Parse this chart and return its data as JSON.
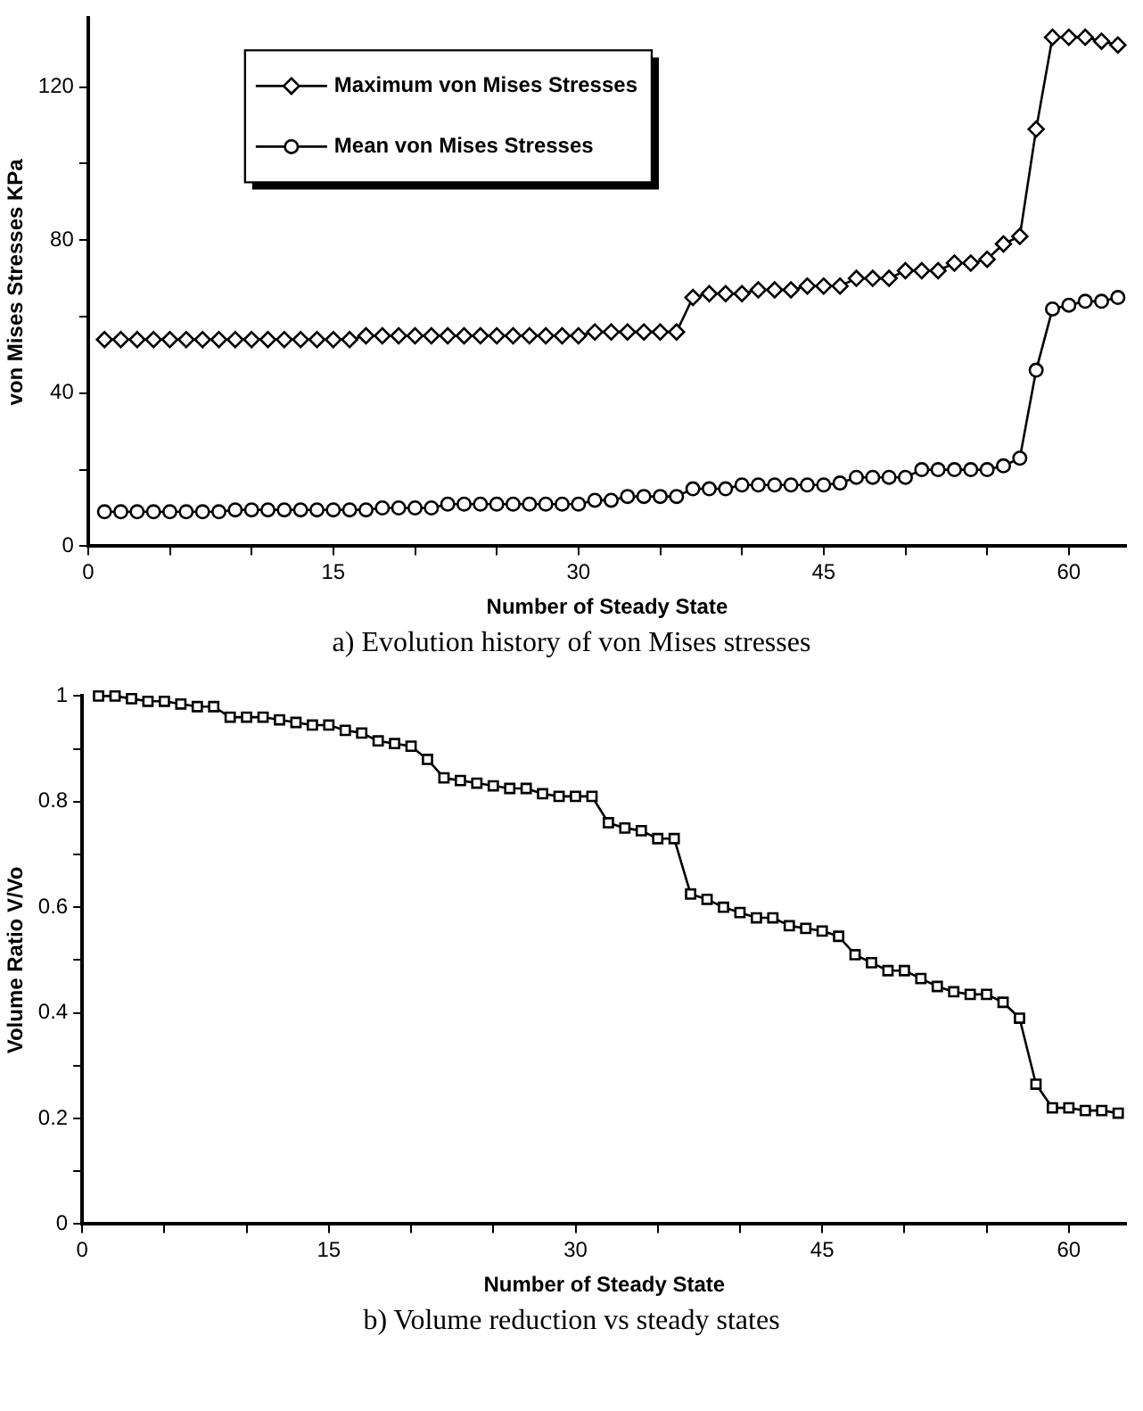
{
  "chart_data": [
    {
      "type": "line",
      "xlabel": "Number of Steady State",
      "ylabel": "von Mises Stresses KPa",
      "annotations": [
        "a) Evolution history of von Mises stresses"
      ],
      "legend": "top left",
      "grid": false,
      "line_style": "solid",
      "xlim": [
        0,
        63.5
      ],
      "ylim": [
        0,
        138
      ],
      "xticks": [
        0,
        {
          "value": 5,
          "label": null
        },
        {
          "value": 10,
          "label": null
        },
        15,
        {
          "value": 20,
          "label": null
        },
        {
          "value": 25,
          "label": null
        },
        30,
        {
          "value": 35,
          "label": null
        },
        {
          "value": 40,
          "label": null
        },
        45,
        {
          "value": 50,
          "label": null
        },
        {
          "value": 55,
          "label": null
        },
        60
      ],
      "yticks": [
        0,
        {
          "value": 20,
          "label": null
        },
        40,
        {
          "value": 60,
          "label": null
        },
        80,
        {
          "value": 100,
          "label": null
        },
        120
      ],
      "x": [
        1,
        2,
        3,
        4,
        5,
        6,
        7,
        8,
        9,
        10,
        11,
        12,
        13,
        14,
        15,
        16,
        17,
        18,
        19,
        20,
        21,
        22,
        23,
        24,
        25,
        26,
        27,
        28,
        29,
        30,
        31,
        32,
        33,
        34,
        35,
        36,
        37,
        38,
        39,
        40,
        41,
        42,
        43,
        44,
        45,
        46,
        47,
        48,
        49,
        50,
        51,
        52,
        53,
        54,
        55,
        56,
        57,
        58,
        59,
        60,
        61,
        62,
        63
      ],
      "series": [
        {
          "name": "Maximum von Mises Stresses",
          "color": "#000000",
          "marker": "diamond",
          "values": [
            54,
            54,
            54,
            54,
            54,
            54,
            54,
            54,
            54,
            54,
            54,
            54,
            54,
            54,
            54,
            54,
            55,
            55,
            55,
            55,
            55,
            55,
            55,
            55,
            55,
            55,
            55,
            55,
            55,
            55,
            56,
            56,
            56,
            56,
            56,
            56,
            65,
            66,
            66,
            66,
            67,
            67,
            67,
            68,
            68,
            68,
            70,
            70,
            70,
            72,
            72,
            72,
            74,
            74,
            75,
            79,
            81,
            109,
            133,
            133,
            133,
            132,
            131
          ]
        },
        {
          "name": "Mean von Mises Stresses",
          "color": "#000000",
          "marker": "circle",
          "values": [
            9,
            9,
            9,
            9,
            9,
            9,
            9,
            9,
            9.5,
            9.5,
            9.5,
            9.5,
            9.5,
            9.5,
            9.5,
            9.5,
            9.5,
            10,
            10,
            10,
            10,
            11,
            11,
            11,
            11,
            11,
            11,
            11,
            11,
            11,
            12,
            12,
            13,
            13,
            13,
            13,
            15,
            15,
            15,
            16,
            16,
            16,
            16,
            16,
            16,
            16.5,
            18,
            18,
            18,
            18,
            20,
            20,
            20,
            20,
            20,
            21,
            23,
            46,
            62,
            63,
            64,
            64,
            65
          ]
        }
      ]
    },
    {
      "type": "line",
      "xlabel": "Number of Steady State",
      "ylabel": "Volume Ratio V/Vo",
      "annotations": [
        "b) Volume reduction vs steady states"
      ],
      "grid": false,
      "line_style": "solid",
      "xlim": [
        0,
        63.5
      ],
      "ylim": [
        0,
        1
      ],
      "xticks": [
        0,
        {
          "value": 5,
          "label": null
        },
        {
          "value": 10,
          "label": null
        },
        15,
        {
          "value": 20,
          "label": null
        },
        {
          "value": 25,
          "label": null
        },
        30,
        {
          "value": 35,
          "label": null
        },
        {
          "value": 40,
          "label": null
        },
        45,
        {
          "value": 50,
          "label": null
        },
        {
          "value": 55,
          "label": null
        },
        60
      ],
      "yticks": [
        0,
        {
          "value": 0.1,
          "label": null
        },
        0.2,
        {
          "value": 0.3,
          "label": null
        },
        0.4,
        {
          "value": 0.5,
          "label": null
        },
        0.6,
        {
          "value": 0.7,
          "label": null
        },
        0.8,
        {
          "value": 0.9,
          "label": null
        },
        1
      ],
      "x": [
        1,
        2,
        3,
        4,
        5,
        6,
        7,
        8,
        9,
        10,
        11,
        12,
        13,
        14,
        15,
        16,
        17,
        18,
        19,
        20,
        21,
        22,
        23,
        24,
        25,
        26,
        27,
        28,
        29,
        30,
        31,
        32,
        33,
        34,
        35,
        36,
        37,
        38,
        39,
        40,
        41,
        42,
        43,
        44,
        45,
        46,
        47,
        48,
        49,
        50,
        51,
        52,
        53,
        54,
        55,
        56,
        57,
        58,
        59,
        60,
        61,
        62,
        63
      ],
      "series": [
        {
          "color": "#000000",
          "marker": "square",
          "values": [
            1,
            1,
            0.995,
            0.99,
            0.99,
            0.985,
            0.98,
            0.98,
            0.96,
            0.96,
            0.96,
            0.955,
            0.95,
            0.945,
            0.945,
            0.935,
            0.93,
            0.915,
            0.91,
            0.905,
            0.88,
            0.845,
            0.84,
            0.835,
            0.83,
            0.825,
            0.825,
            0.815,
            0.81,
            0.81,
            0.81,
            0.76,
            0.75,
            0.745,
            0.73,
            0.73,
            0.625,
            0.615,
            0.6,
            0.59,
            0.58,
            0.58,
            0.565,
            0.56,
            0.555,
            0.545,
            0.51,
            0.495,
            0.48,
            0.48,
            0.465,
            0.45,
            0.44,
            0.435,
            0.435,
            0.42,
            0.39,
            0.265,
            0.22,
            0.22,
            0.215,
            0.215,
            0.21
          ]
        }
      ]
    }
  ]
}
